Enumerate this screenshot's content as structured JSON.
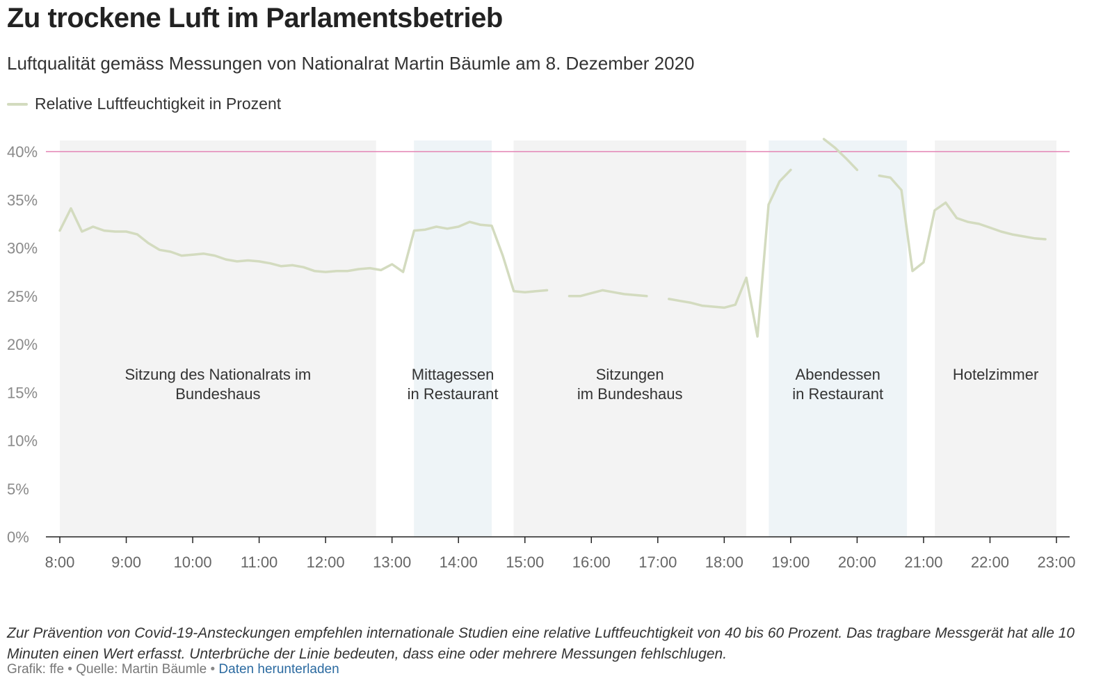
{
  "header": {
    "title": "Zu trockene Luft im Parlamentsbetrieb",
    "subtitle": "Luftqualität gemäss Messungen von Nationalrat Martin Bäumle am 8. Dezember 2020"
  },
  "legend": {
    "label": "Relative Luftfeuchtigkeit in Prozent",
    "color": "#d3dbbf"
  },
  "chart_data": {
    "type": "line",
    "title": "Zu trockene Luft im Parlamentsbetrieb",
    "xlabel": "",
    "ylabel": "Relative Luftfeuchtigkeit in Prozent",
    "xlim": [
      8.0,
      23.0
    ],
    "ylim": [
      0,
      41
    ],
    "x_ticks": [
      8,
      9,
      10,
      11,
      12,
      13,
      14,
      15,
      16,
      17,
      18,
      19,
      20,
      21,
      22,
      23
    ],
    "x_tick_labels": [
      "8:00",
      "9:00",
      "10:00",
      "11:00",
      "12:00",
      "13:00",
      "14:00",
      "15:00",
      "16:00",
      "17:00",
      "18:00",
      "19:00",
      "20:00",
      "21:00",
      "22:00",
      "23:00"
    ],
    "y_ticks": [
      0,
      5,
      10,
      15,
      20,
      25,
      30,
      35,
      40
    ],
    "y_tick_labels": [
      "0%",
      "5%",
      "10%",
      "15%",
      "20%",
      "25%",
      "30%",
      "35%",
      "40%"
    ],
    "reference_line": {
      "value": 40,
      "color": "#e383b4"
    },
    "line_color": "#d3dbbf",
    "periods": [
      {
        "label_lines": [
          "Sitzung des Nationalrats im",
          "Bundeshaus"
        ],
        "start": 8.0,
        "end": 12.76,
        "kind": "session",
        "color": "#f3f3f3"
      },
      {
        "label_lines": [
          "Mittagessen",
          "in Restaurant"
        ],
        "start": 13.33,
        "end": 14.5,
        "kind": "restaurant",
        "color": "#eef4f7"
      },
      {
        "label_lines": [
          "Sitzungen",
          "im Bundeshaus"
        ],
        "start": 14.83,
        "end": 18.33,
        "kind": "session",
        "color": "#f3f3f3"
      },
      {
        "label_lines": [
          "Abendessen",
          "in Restaurant"
        ],
        "start": 18.67,
        "end": 20.75,
        "kind": "restaurant",
        "color": "#eef4f7"
      },
      {
        "label_lines": [
          "Hotelzimmer"
        ],
        "start": 21.17,
        "end": 23.0,
        "kind": "session",
        "color": "#f3f3f3"
      }
    ],
    "series": [
      {
        "name": "Relative Luftfeuchtigkeit in Prozent",
        "segments": [
          {
            "x": [
              8.0,
              8.167,
              8.333,
              8.5,
              8.667,
              8.833,
              9.0,
              9.167,
              9.333,
              9.5,
              9.667,
              9.833,
              10.0,
              10.167,
              10.333,
              10.5,
              10.667,
              10.833,
              11.0,
              11.167,
              11.333,
              11.5,
              11.667,
              11.833,
              12.0,
              12.167,
              12.333,
              12.5,
              12.667,
              12.833,
              13.0,
              13.167,
              13.333,
              13.5,
              13.667,
              13.833,
              14.0,
              14.167,
              14.333,
              14.5,
              14.667,
              14.833,
              15.0,
              15.167,
              15.333
            ],
            "y": [
              31.8,
              34.1,
              31.7,
              32.2,
              31.8,
              31.7,
              31.7,
              31.4,
              30.5,
              29.8,
              29.6,
              29.2,
              29.3,
              29.4,
              29.2,
              28.8,
              28.6,
              28.7,
              28.6,
              28.4,
              28.1,
              28.2,
              28.0,
              27.6,
              27.5,
              27.6,
              27.6,
              27.8,
              27.9,
              27.7,
              28.3,
              27.5,
              31.8,
              31.9,
              32.2,
              32.0,
              32.2,
              32.7,
              32.4,
              32.3,
              29.2,
              25.5,
              25.4,
              25.5,
              25.6
            ]
          },
          {
            "x": [
              15.667,
              15.833,
              16.0,
              16.167,
              16.333,
              16.5,
              16.667,
              16.833
            ],
            "y": [
              25.0,
              25.0,
              25.3,
              25.6,
              25.4,
              25.2,
              25.1,
              25.0
            ]
          },
          {
            "x": [
              17.167,
              17.333,
              17.5,
              17.667,
              17.833,
              18.0,
              18.167,
              18.333,
              18.5,
              18.667,
              18.833,
              19.0
            ],
            "y": [
              24.7,
              24.5,
              24.3,
              24.0,
              23.9,
              23.8,
              24.1,
              26.9,
              20.8,
              34.5,
              36.9,
              38.1
            ]
          },
          {
            "x": [
              19.5,
              19.667,
              19.833,
              20.0
            ],
            "y": [
              41.3,
              40.4,
              39.3,
              38.1
            ]
          },
          {
            "x": [
              20.333,
              20.5,
              20.667,
              20.833,
              21.0,
              21.167,
              21.333,
              21.5,
              21.667,
              21.833,
              22.0,
              22.167,
              22.333,
              22.5,
              22.667,
              22.833
            ],
            "y": [
              37.5,
              37.3,
              36.0,
              27.6,
              28.5,
              33.9,
              34.7,
              33.1,
              32.7,
              32.5,
              32.1,
              31.7,
              31.4,
              31.2,
              31.0,
              30.9
            ]
          }
        ]
      }
    ]
  },
  "note": "Zur Prävention von Covid-19-Ansteckungen empfehlen internationale Studien eine relative Luftfeuchtigkeit von 40 bis 60 Prozent. Das tragbare Messgerät hat alle 10 Minuten einen Wert erfasst. Unterbrüche der Linie bedeuten, dass eine oder mehrere Messungen fehlschlugen.",
  "footer": {
    "credit": "Grafik: ffe",
    "separator": "•",
    "source": "Quelle: Martin Bäumle",
    "download_label": "Daten herunterladen"
  }
}
